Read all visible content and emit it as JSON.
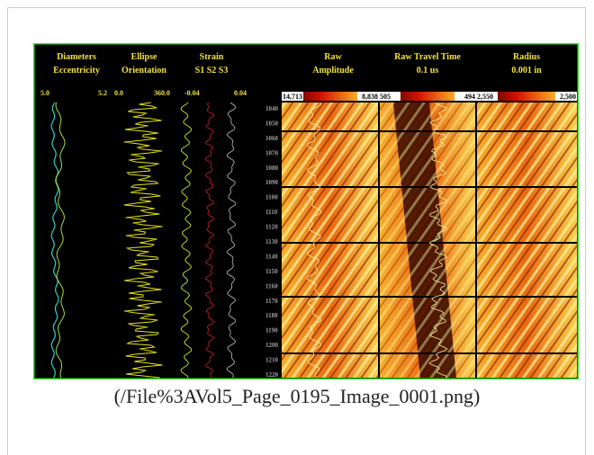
{
  "image": {
    "headers": [
      {
        "lines": [
          "Diameters",
          "Eccentricity"
        ]
      },
      {
        "lines": [
          "Ellipse",
          "Orientation"
        ]
      },
      {
        "lines": [
          "Strain",
          "S1  S2  S3"
        ]
      },
      {
        "lines": [
          "Raw",
          "Amplitude"
        ]
      },
      {
        "lines": [
          "Raw Travel Time",
          "0.1 us"
        ]
      },
      {
        "lines": [
          "Radius",
          "0.001 in"
        ]
      }
    ],
    "scales": [
      "5.0",
      "5.2",
      "0.0",
      "360.0",
      "-0.04",
      "0.04"
    ],
    "colorbars": [
      {
        "min": "14,713",
        "max": "8,838"
      },
      {
        "min": "505",
        "max": "494"
      },
      {
        "min": "2,550",
        "max": "2,500"
      }
    ],
    "depths": [
      "1040",
      "1050",
      "1060",
      "1070",
      "1080",
      "1090",
      "1100",
      "1110",
      "1120",
      "1130",
      "1140",
      "1150",
      "1160",
      "1170",
      "1180",
      "1190",
      "1200",
      "1210",
      "1220"
    ]
  },
  "caption": "(/File%3AVol5_Page_0195_Image_0001.png)"
}
